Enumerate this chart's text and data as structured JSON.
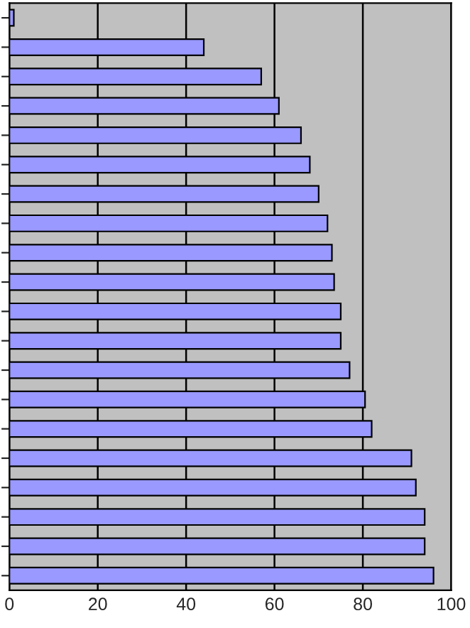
{
  "chart_data": {
    "type": "bar",
    "orientation": "horizontal",
    "categories": [
      null,
      null,
      null,
      null,
      null,
      null,
      null,
      null,
      null,
      null,
      null,
      null,
      null,
      null,
      null,
      null,
      null,
      null,
      null,
      null
    ],
    "values": [
      1,
      44,
      57,
      61,
      66,
      68,
      70,
      72,
      73,
      73.5,
      75,
      75,
      77,
      80.5,
      82,
      91,
      92,
      94,
      94,
      96
    ],
    "color": "#9999ff",
    "xlim": [
      0,
      100
    ],
    "xticks": [
      0,
      20,
      40,
      60,
      80,
      100
    ],
    "grid": "x"
  }
}
